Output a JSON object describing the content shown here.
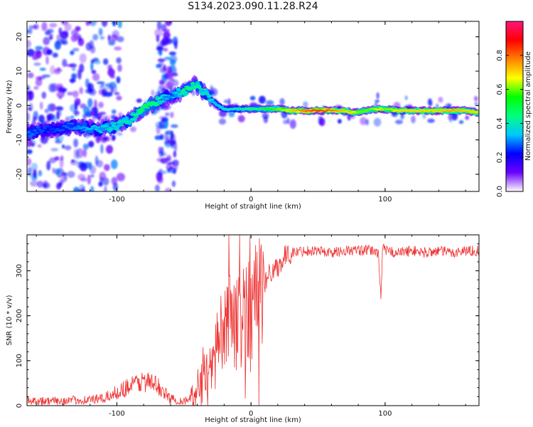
{
  "figure": {
    "title": "S134.2023.090.11.28.R24"
  },
  "chart_data": [
    {
      "type": "heatmap",
      "xlabel": "Height of straight line (km)",
      "ylabel": "Frequency (Hz)",
      "xlim": [
        -167,
        170
      ],
      "ylim": [
        -25,
        24.5
      ],
      "x_ticks": [
        "-100",
        "0",
        "100"
      ],
      "x_tick_values": [
        -100,
        0,
        100
      ],
      "y_ticks": [
        "20",
        "10",
        "0",
        "-10",
        "-20"
      ],
      "y_tick_values": [
        20,
        10,
        0,
        -10,
        -20
      ],
      "grid": false,
      "ridge": {
        "x": [
          -167,
          -150,
          -130,
          -115,
          -100,
          -90,
          -80,
          -70,
          -60,
          -50,
          -42,
          -35,
          -30,
          -25,
          -20,
          -10,
          0,
          10,
          20,
          30,
          40,
          50,
          60,
          70,
          75,
          80,
          85,
          90,
          95,
          100,
          110,
          120,
          130,
          140,
          150,
          160,
          170
        ],
        "freq": [
          -8,
          -7,
          -6,
          -7,
          -6,
          -4,
          -1,
          1,
          3,
          4,
          6,
          4,
          2,
          0,
          -1,
          -1,
          -1,
          -1,
          -1,
          -1.5,
          -1.5,
          -1.5,
          -1.5,
          -1.5,
          -2,
          -2,
          -1.5,
          -1,
          -1,
          -1,
          -1.5,
          -1.5,
          -1.5,
          -1.5,
          -1.5,
          -1.5,
          -2
        ],
        "amplitude": [
          0.3,
          0.25,
          0.3,
          0.35,
          0.4,
          0.4,
          0.5,
          0.45,
          0.3,
          0.45,
          0.45,
          0.4,
          0.4,
          0.35,
          0.4,
          0.4,
          0.45,
          0.5,
          0.6,
          0.7,
          0.8,
          0.85,
          0.8,
          0.7,
          0.7,
          0.6,
          0.6,
          0.6,
          0.7,
          0.6,
          0.7,
          0.7,
          0.7,
          0.7,
          0.75,
          0.7,
          0.7
        ]
      }
    },
    {
      "type": "bar",
      "orientation": "vertical",
      "role": "colorbar",
      "ylabel": "Normalized spectral amplitude",
      "ylim": [
        0,
        1
      ],
      "ticks": [
        "0.0",
        "0.2",
        "0.4",
        "0.6",
        "0.8"
      ],
      "tick_values": [
        0,
        0.2,
        0.4,
        0.6,
        0.8
      ],
      "colormap": [
        "#ffffff",
        "#6a00ff",
        "#0000ff",
        "#00c8ff",
        "#00ff7f",
        "#00ff00",
        "#ffff00",
        "#ff8000",
        "#ff0000",
        "#ff1480"
      ]
    },
    {
      "type": "line",
      "xlabel": "Height of straight line (km)",
      "ylabel": "SNR (10 * v/v)",
      "xlim": [
        -167,
        170
      ],
      "ylim": [
        0,
        380
      ],
      "x_ticks": [
        "-100",
        "0",
        "100"
      ],
      "x_tick_values": [
        -100,
        0,
        100
      ],
      "y_ticks": [
        "0",
        "100",
        "200",
        "300"
      ],
      "y_tick_values": [
        0,
        100,
        200,
        300
      ],
      "grid": false,
      "series": [
        {
          "color": "#ee3333",
          "x": [
            -167,
            -150,
            -130,
            -110,
            -100,
            -90,
            -80,
            -75,
            -70,
            -60,
            -50,
            -45,
            -40,
            -35,
            -30,
            -25,
            -20,
            -15,
            -10,
            -5,
            0,
            5,
            10,
            15,
            20,
            25,
            30,
            40,
            50,
            60,
            70,
            80,
            90,
            95,
            97,
            98,
            100,
            110,
            120,
            130,
            140,
            150,
            160,
            170
          ],
          "y": [
            12,
            10,
            12,
            15,
            30,
            45,
            55,
            50,
            45,
            15,
            10,
            15,
            30,
            60,
            90,
            120,
            150,
            200,
            180,
            210,
            230,
            250,
            270,
            300,
            310,
            330,
            340,
            345,
            345,
            340,
            345,
            345,
            345,
            340,
            240,
            350,
            345,
            340,
            345,
            340,
            345,
            340,
            345,
            345
          ]
        }
      ]
    }
  ]
}
